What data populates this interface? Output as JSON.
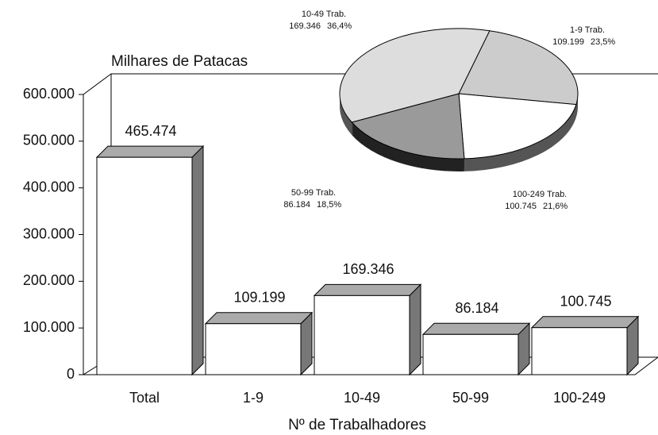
{
  "chart_data": [
    {
      "type": "bar3d",
      "title": "Milhares de Patacas",
      "x_label": "Nº de Trabalhadores",
      "categories": [
        "Total",
        "1-9",
        "10-49",
        "50-99",
        "100-249"
      ],
      "values": [
        465474,
        109199,
        169346,
        86184,
        100745
      ],
      "value_labels": [
        "465.474",
        "109.199",
        "169.346",
        "86.184",
        "100.745"
      ],
      "ylim": [
        0,
        600000
      ],
      "yticks": [
        0,
        {
          "value": 100000,
          "label": "100.000"
        },
        {
          "value": 200000,
          "label": "200.000"
        },
        {
          "value": 300000,
          "label": "300.000"
        },
        {
          "value": 400000,
          "label": "400.000"
        },
        {
          "value": 500000,
          "label": "500.000"
        },
        {
          "value": 600000,
          "label": "600.000"
        }
      ],
      "color": "#ffffff"
    },
    {
      "type": "pie3d",
      "categories": [
        "1-9 Trab.",
        "100-249 Trab.",
        "50-99 Trab.",
        "10-49 Trab."
      ],
      "values": [
        23.5,
        21.6,
        18.5,
        36.4
      ],
      "value_labels": [
        "23,5%",
        "21,6%",
        "18,5%",
        "36,4%"
      ],
      "amount_labels": [
        "109.199",
        "100.745",
        "86.184",
        "169.346"
      ],
      "colors": [
        "#cccccc",
        "#ffffff",
        "#9a9a9a",
        "#dddddd"
      ]
    }
  ]
}
